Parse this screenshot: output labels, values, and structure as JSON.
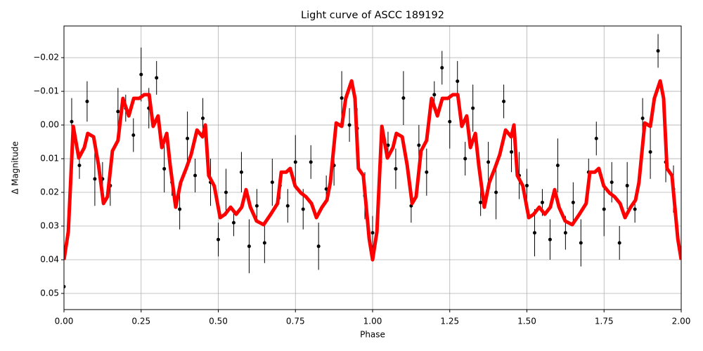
{
  "chart_data": {
    "type": "scatter",
    "title": "Light curve of ASCC 189192",
    "xlabel": "Phase",
    "ylabel": "Δ Magnitude",
    "xlim": [
      0,
      2
    ],
    "ylim": [
      0.0548,
      -0.0294
    ],
    "grid": true,
    "xticks": [
      {
        "value": 0,
        "label": "0.00"
      },
      {
        "value": 0.25,
        "label": "0.25"
      },
      {
        "value": 0.5,
        "label": "0.50"
      },
      {
        "value": 0.75,
        "label": "0.75"
      },
      {
        "value": 1,
        "label": "1.00"
      },
      {
        "value": 1.25,
        "label": "1.25"
      },
      {
        "value": 1.5,
        "label": "1.50"
      },
      {
        "value": 1.75,
        "label": "1.75"
      },
      {
        "value": 2,
        "label": "2.00"
      }
    ],
    "yticks": [
      {
        "value": -0.02,
        "label": "−0.02"
      },
      {
        "value": -0.01,
        "label": "−0.01"
      },
      {
        "value": 0,
        "label": "0.00"
      },
      {
        "value": 0.01,
        "label": "0.01"
      },
      {
        "value": 0.02,
        "label": "0.02"
      },
      {
        "value": 0.03,
        "label": "0.03"
      },
      {
        "value": 0.04,
        "label": "0.04"
      },
      {
        "value": 0.05,
        "label": "0.05"
      }
    ],
    "series": [
      {
        "type": "errorbar",
        "color": "#000000",
        "x": [
          0,
          0.025,
          0.05,
          0.075,
          0.1,
          0.125,
          0.15,
          0.175,
          0.2,
          0.225,
          0.25,
          0.275,
          0.3,
          0.325,
          0.35,
          0.375,
          0.4,
          0.425,
          0.45,
          0.475,
          0.5,
          0.525,
          0.55,
          0.575,
          0.6,
          0.625,
          0.65,
          0.675,
          0.7,
          0.725,
          0.75,
          0.775,
          0.8,
          0.825,
          0.85,
          0.875,
          0.9,
          0.925,
          0.95,
          0.975,
          1,
          1.025,
          1.05,
          1.075,
          1.1,
          1.125,
          1.15,
          1.175,
          1.2,
          1.225,
          1.25,
          1.275,
          1.3,
          1.325,
          1.35,
          1.375,
          1.4,
          1.425,
          1.45,
          1.475,
          1.5,
          1.525,
          1.55,
          1.575,
          1.6,
          1.625,
          1.65,
          1.675,
          1.7,
          1.725,
          1.75,
          1.775,
          1.8,
          1.825,
          1.85,
          1.875,
          1.9,
          1.925,
          1.95,
          1.975
        ],
        "values": [
          0.048,
          -0.001,
          0.012,
          -0.007,
          0.016,
          0.016,
          0.018,
          -0.004,
          -0.005,
          0.003,
          -0.015,
          -0.005,
          -0.014,
          0.013,
          0.017,
          0.025,
          0.004,
          0.015,
          -0.002,
          0.017,
          0.034,
          0.02,
          0.029,
          0.014,
          0.036,
          0.024,
          0.035,
          0.017,
          0.018,
          0.024,
          0.011,
          0.025,
          0.011,
          0.036,
          0.019,
          0.012,
          -0.008,
          0,
          0.001,
          0.021,
          0.032,
          0.011,
          0.006,
          0.013,
          -0.008,
          0.024,
          0.006,
          0.014,
          -0.009,
          -0.017,
          -0.001,
          -0.013,
          0.01,
          -0.005,
          0.023,
          0.011,
          0.02,
          -0.007,
          0.008,
          0.015,
          0.018,
          0.032,
          0.023,
          0.034,
          0.012,
          0.032,
          0.023,
          0.035,
          0.014,
          0.004,
          0.025,
          0.017,
          0.035,
          0.018,
          0.025,
          -0.002,
          0.008,
          -0.022,
          0.011,
          0.019
        ],
        "errors": [
          0.005,
          0.007,
          0.004,
          0.006,
          0.008,
          0.005,
          0.006,
          0.007,
          0.004,
          0.005,
          0.008,
          0.006,
          0.005,
          0.007,
          0.004,
          0.006,
          0.008,
          0.005,
          0.006,
          0.007,
          0.005,
          0.007,
          0.004,
          0.006,
          0.008,
          0.005,
          0.006,
          0.007,
          0.004,
          0.005,
          0.008,
          0.006,
          0.005,
          0.007,
          0.004,
          0.006,
          0.008,
          0.005,
          0.006,
          0.007,
          0.005,
          0.007,
          0.004,
          0.006,
          0.008,
          0.005,
          0.006,
          0.007,
          0.004,
          0.005,
          0.008,
          0.006,
          0.005,
          0.007,
          0.004,
          0.006,
          0.008,
          0.005,
          0.006,
          0.007,
          0.005,
          0.007,
          0.004,
          0.006,
          0.008,
          0.005,
          0.006,
          0.007,
          0.004,
          0.005,
          0.008,
          0.006,
          0.005,
          0.007,
          0.004,
          0.006,
          0.008,
          0.005,
          0.006,
          0.007
        ]
      },
      {
        "type": "line",
        "color": "#ff0000",
        "x": [
          0,
          0.014,
          0.03,
          0.048,
          0.066,
          0.077,
          0.096,
          0.112,
          0.128,
          0.141,
          0.157,
          0.175,
          0.191,
          0.21,
          0.226,
          0.244,
          0.26,
          0.276,
          0.289,
          0.305,
          0.317,
          0.333,
          0.344,
          0.362,
          0.378,
          0.396,
          0.412,
          0.431,
          0.449,
          0.458,
          0.469,
          0.487,
          0.506,
          0.522,
          0.54,
          0.558,
          0.576,
          0.59,
          0.604,
          0.624,
          0.647,
          0.67,
          0.692,
          0.704,
          0.72,
          0.733,
          0.749,
          0.768,
          0.784,
          0.802,
          0.818,
          0.836,
          0.852,
          0.863,
          0.882,
          0.9,
          0.913,
          0.932,
          0.943,
          0.954,
          0.97,
          0.989,
          1,
          1.014,
          1.03,
          1.048,
          1.066,
          1.077,
          1.096,
          1.112,
          1.128,
          1.141,
          1.157,
          1.175,
          1.191,
          1.21,
          1.226,
          1.244,
          1.26,
          1.276,
          1.289,
          1.305,
          1.317,
          1.333,
          1.344,
          1.362,
          1.378,
          1.396,
          1.412,
          1.431,
          1.449,
          1.458,
          1.469,
          1.487,
          1.506,
          1.522,
          1.54,
          1.558,
          1.576,
          1.59,
          1.604,
          1.624,
          1.647,
          1.67,
          1.692,
          1.704,
          1.72,
          1.733,
          1.749,
          1.768,
          1.784,
          1.802,
          1.818,
          1.836,
          1.852,
          1.863,
          1.882,
          1.9,
          1.913,
          1.932,
          1.943,
          1.954,
          1.97,
          1.989,
          2
        ],
        "values": [
          0.04,
          0.0317,
          0.0004,
          0.0098,
          0.0067,
          0.0025,
          0.0035,
          0.0119,
          0.0233,
          0.0213,
          0.0077,
          0.0046,
          -0.0079,
          -0.0027,
          -0.0079,
          -0.0079,
          -0.009,
          -0.009,
          0.0004,
          -0.0027,
          0.0067,
          0.0025,
          0.0119,
          0.0244,
          0.0171,
          0.0129,
          0.0088,
          0.0015,
          0.0035,
          0,
          0.015,
          0.0181,
          0.0275,
          0.0265,
          0.0244,
          0.0265,
          0.0244,
          0.0192,
          0.0244,
          0.0285,
          0.0296,
          0.0265,
          0.0233,
          0.014,
          0.014,
          0.0129,
          0.0181,
          0.0202,
          0.0213,
          0.0233,
          0.0275,
          0.0244,
          0.0223,
          0.0171,
          -0.0006,
          0.0004,
          -0.0079,
          -0.0131,
          -0.0079,
          0.0129,
          0.015,
          0.0338,
          0.04,
          0.0317,
          0.0004,
          0.0098,
          0.0067,
          0.0025,
          0.0035,
          0.0119,
          0.0233,
          0.0213,
          0.0077,
          0.0046,
          -0.0079,
          -0.0027,
          -0.0079,
          -0.0079,
          -0.009,
          -0.009,
          0.0004,
          -0.0027,
          0.0067,
          0.0025,
          0.0119,
          0.0244,
          0.0171,
          0.0129,
          0.0088,
          0.0015,
          0.0035,
          0,
          0.015,
          0.0181,
          0.0275,
          0.0265,
          0.0244,
          0.0265,
          0.0244,
          0.0192,
          0.0244,
          0.0285,
          0.0296,
          0.0265,
          0.0233,
          0.014,
          0.014,
          0.0129,
          0.0181,
          0.0202,
          0.0213,
          0.0233,
          0.0275,
          0.0244,
          0.0223,
          0.0171,
          -0.0006,
          0.0004,
          -0.0079,
          -0.0131,
          -0.0079,
          0.0129,
          0.015,
          0.0338,
          0.04
        ]
      }
    ]
  }
}
